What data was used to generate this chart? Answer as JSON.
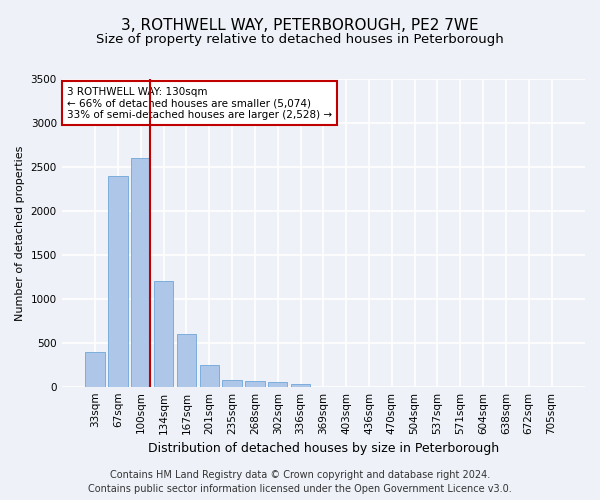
{
  "title": "3, ROTHWELL WAY, PETERBOROUGH, PE2 7WE",
  "subtitle": "Size of property relative to detached houses in Peterborough",
  "xlabel": "Distribution of detached houses by size in Peterborough",
  "ylabel": "Number of detached properties",
  "footer_line1": "Contains HM Land Registry data © Crown copyright and database right 2024.",
  "footer_line2": "Contains public sector information licensed under the Open Government Licence v3.0.",
  "categories": [
    "33sqm",
    "67sqm",
    "100sqm",
    "134sqm",
    "167sqm",
    "201sqm",
    "235sqm",
    "268sqm",
    "302sqm",
    "336sqm",
    "369sqm",
    "403sqm",
    "436sqm",
    "470sqm",
    "504sqm",
    "537sqm",
    "571sqm",
    "604sqm",
    "638sqm",
    "672sqm",
    "705sqm"
  ],
  "values": [
    400,
    2400,
    2600,
    1200,
    600,
    250,
    80,
    60,
    50,
    30,
    0,
    0,
    0,
    0,
    0,
    0,
    0,
    0,
    0,
    0,
    0
  ],
  "bar_color": "#aec6e8",
  "bar_edge_color": "#5b9bd5",
  "highlight_bar_index": 2,
  "vline_color": "#c00000",
  "annotation_text": "3 ROTHWELL WAY: 130sqm\n← 66% of detached houses are smaller (5,074)\n33% of semi-detached houses are larger (2,528) →",
  "annotation_box_color": "white",
  "annotation_box_edge_color": "#c00000",
  "ylim": [
    0,
    3500
  ],
  "yticks": [
    0,
    500,
    1000,
    1500,
    2000,
    2500,
    3000,
    3500
  ],
  "title_fontsize": 11,
  "subtitle_fontsize": 9.5,
  "xlabel_fontsize": 9,
  "ylabel_fontsize": 8,
  "tick_fontsize": 7.5,
  "annotation_fontsize": 7.5,
  "footer_fontsize": 7,
  "background_color": "#eef2f8",
  "plot_bg_color": "#eef2f8",
  "grid_color": "white",
  "fig_width": 6.0,
  "fig_height": 5.0
}
